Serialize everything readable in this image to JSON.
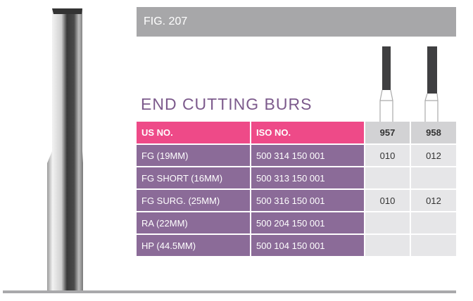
{
  "figure_label": "FIG. 207",
  "title": "END CUTTING BURS",
  "table": {
    "headers": [
      "US NO.",
      "ISO NO.",
      "957",
      "958"
    ],
    "rows": [
      [
        "FG (19MM)",
        "500 314 150 001",
        "010",
        "012"
      ],
      [
        "FG SHORT (16MM)",
        "500 313 150 001",
        "",
        ""
      ],
      [
        "FG SURG. (25MM)",
        "500 316 150 001",
        "010",
        "012"
      ],
      [
        "RA (22MM)",
        "500 204 150 001",
        "",
        ""
      ],
      [
        "HP (44.5MM)",
        "500 104 150 001",
        "",
        ""
      ]
    ]
  },
  "colors": {
    "header_pink": "#ee4a88",
    "row_purple": "#8b6b98",
    "title_purple": "#7c5a8c",
    "fig_bar_gray": "#a7a7a9"
  }
}
